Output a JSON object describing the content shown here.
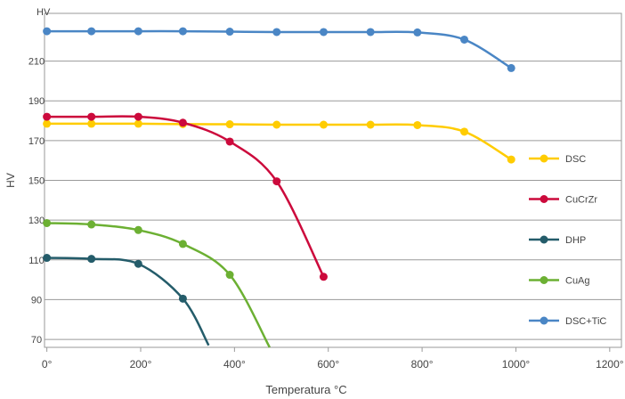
{
  "chart_data": {
    "type": "line",
    "xlabel": "Temperatura °C",
    "ylabel": "HV",
    "y_unit_label": "HV",
    "xlim": [
      -5,
      1225
    ],
    "ylim": [
      66,
      234
    ],
    "x_ticks": [
      0,
      200,
      400,
      600,
      800,
      1000,
      1200
    ],
    "x_tick_labels": [
      "0°",
      "200°",
      "400°",
      "600°",
      "800°",
      "1000°",
      "1200°"
    ],
    "y_ticks": [
      70,
      90,
      110,
      130,
      150,
      170,
      190,
      210
    ],
    "grid": "horizontal",
    "legend_position": "right",
    "series": [
      {
        "name": "DSC",
        "color": "#FFCC00",
        "x": [
          0,
          95,
          195,
          290,
          390,
          490,
          590,
          690,
          790,
          890,
          990
        ],
        "y": [
          178.5,
          178.5,
          178.5,
          178.3,
          178.2,
          178.0,
          178.0,
          178.0,
          177.8,
          174.5,
          160.5
        ]
      },
      {
        "name": "CuCrZr",
        "color": "#CC0A3C",
        "x": [
          0,
          95,
          195,
          290,
          390,
          490,
          590
        ],
        "y": [
          182.0,
          182.0,
          182.0,
          179.0,
          169.5,
          149.5,
          101.5
        ]
      },
      {
        "name": "DHP",
        "color": "#245C6A",
        "x": [
          0,
          95,
          195,
          290
        ],
        "y": [
          111.0,
          110.5,
          108.0,
          90.5
        ],
        "tail": [
          345,
          67
        ]
      },
      {
        "name": "CuAg",
        "color": "#6CB033",
        "x": [
          0,
          95,
          195,
          290,
          390
        ],
        "y": [
          128.5,
          127.8,
          125.0,
          118.0,
          102.5
        ],
        "tail": [
          475,
          66
        ]
      },
      {
        "name": "DSC+TiC",
        "color": "#4A86C5",
        "x": [
          0,
          95,
          195,
          290,
          390,
          490,
          590,
          690,
          790,
          890,
          990
        ],
        "y": [
          225.0,
          225.0,
          225.0,
          225.0,
          224.8,
          224.6,
          224.6,
          224.6,
          224.4,
          220.8,
          206.5
        ]
      }
    ]
  }
}
